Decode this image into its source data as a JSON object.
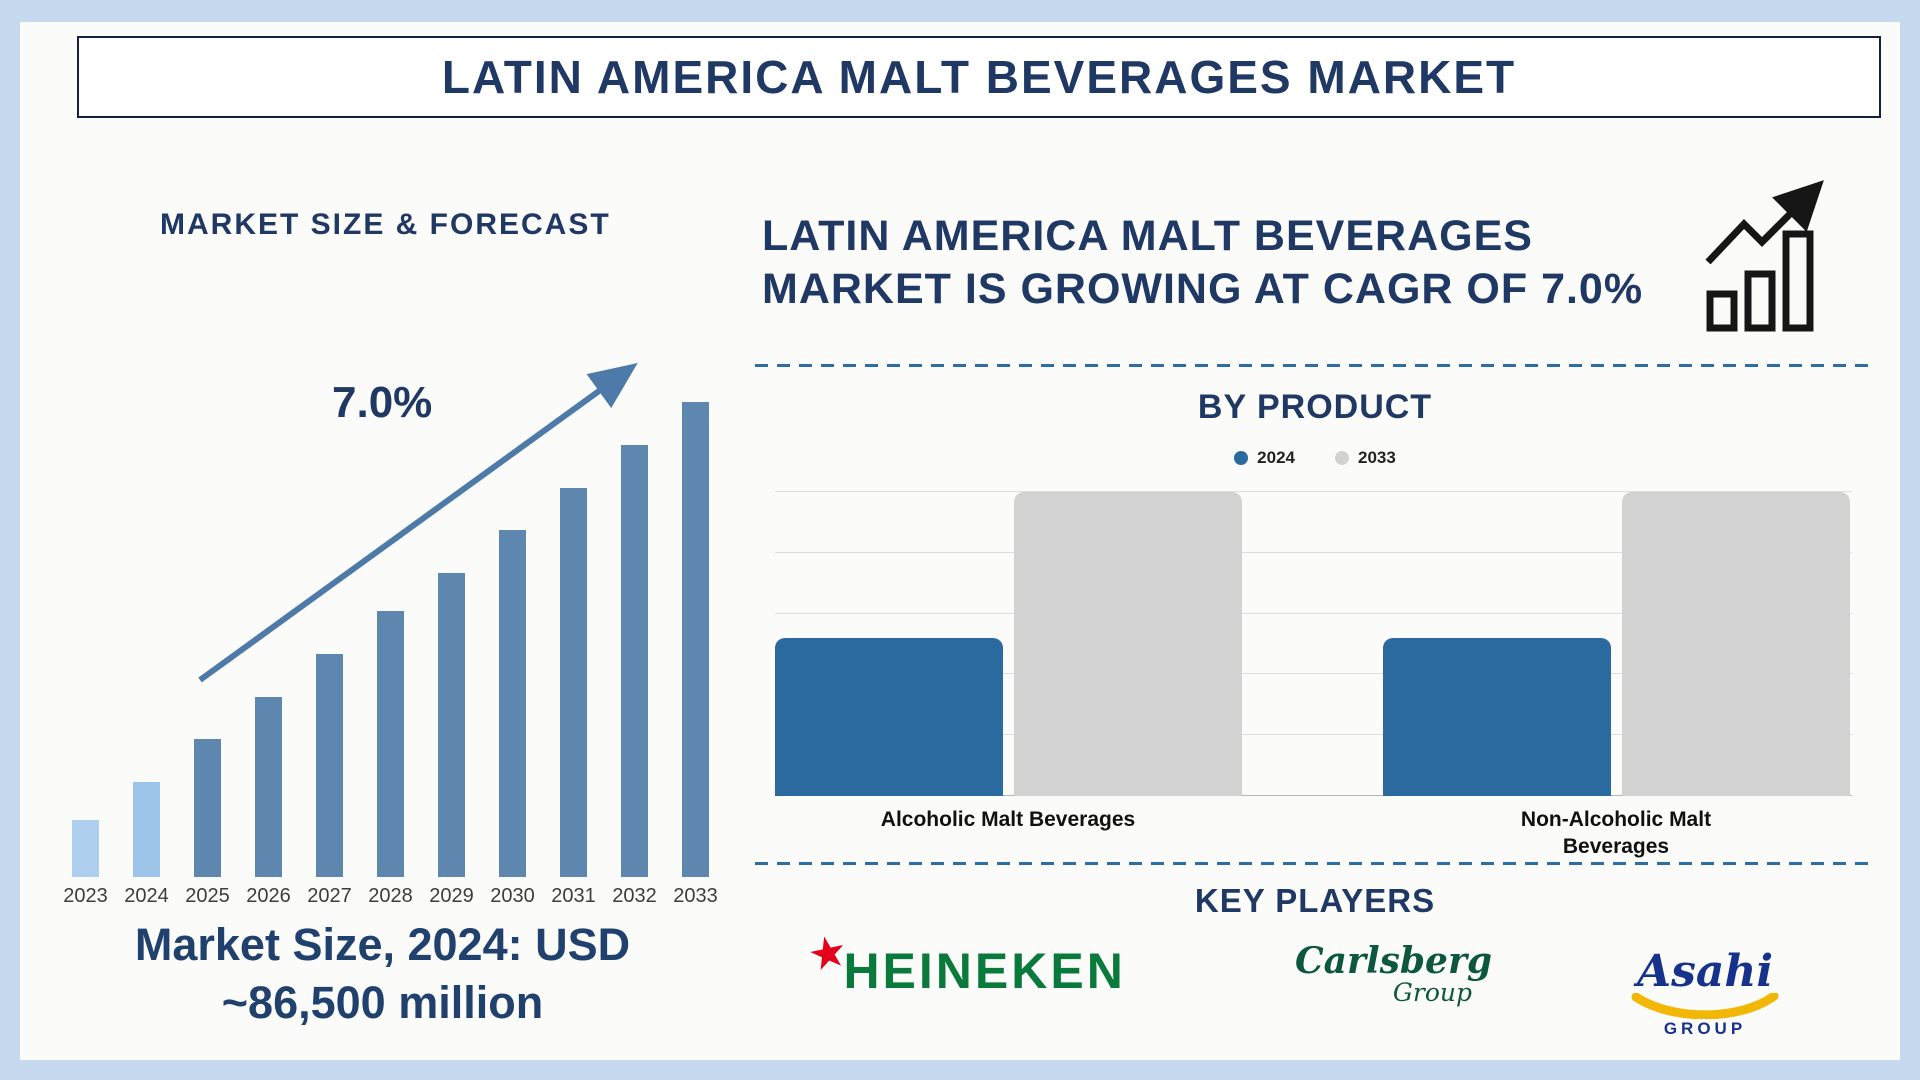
{
  "page": {
    "title": "LATIN AMERICA MALT BEVERAGES MARKET",
    "background_color": "#c7d9ef",
    "panel_color": "#fbfbf9",
    "accent_navy": "#1f3864"
  },
  "forecast": {
    "section_title": "MARKET SIZE & FORECAST",
    "cagr_label": "7.0%",
    "caption_line1": "Market Size, 2024: USD",
    "caption_line2": "~86,500 million",
    "arrow_color": "#4d7aa9"
  },
  "growth_banner": {
    "line1": "LATIN AMERICA MALT BEVERAGES",
    "line2": "MARKET IS GROWING AT CAGR OF 7.0%",
    "icon": "growth-chart-icon"
  },
  "by_product": {
    "title": "BY PRODUCT"
  },
  "key_players": {
    "title": "KEY PLAYERS",
    "logos": [
      {
        "name": "Heineken",
        "text": "HEINEKEN",
        "star_color": "#e2001a",
        "text_color": "#0a7a3c"
      },
      {
        "name": "Carlsberg Group",
        "text": "Carlsberg",
        "subtext": "Group",
        "text_color": "#0d5740"
      },
      {
        "name": "Asahi Group",
        "text": "Asahi",
        "subtext": "GROUP",
        "text_color": "#16328c",
        "swoosh_color": "#f2b705"
      }
    ]
  },
  "chart_data": [
    {
      "type": "bar",
      "title": "MARKET SIZE & FORECAST",
      "categories": [
        "2023",
        "2024",
        "2025",
        "2026",
        "2027",
        "2028",
        "2029",
        "2030",
        "2031",
        "2032",
        "2033"
      ],
      "values": [
        12,
        20,
        29,
        38,
        47,
        56,
        64,
        73,
        82,
        91,
        100
      ],
      "units": "relative bar height, % of tallest bar (no y-axis shown)",
      "annotation": "7.0% CAGR trend arrow",
      "bar_colors": [
        "#aecfee",
        "#9cc3e8",
        "#5e87af",
        "#5e87af",
        "#5e87af",
        "#5e87af",
        "#5e87af",
        "#5e87af",
        "#5e87af",
        "#5e87af",
        "#5e87af"
      ],
      "xlabel": "",
      "ylabel": "",
      "grid": false
    },
    {
      "type": "bar",
      "title": "BY PRODUCT",
      "categories": [
        "Alcoholic Malt Beverages",
        "Non-Alcoholic Malt Beverages"
      ],
      "series": [
        {
          "name": "2024",
          "color": "#2b6a9e",
          "values": [
            52,
            52
          ]
        },
        {
          "name": "2033",
          "color": "#d2d2d2",
          "values": [
            100,
            100
          ]
        }
      ],
      "units": "relative bar height, % of tallest bar (no y-axis shown)",
      "legend_position": "top",
      "grid": true,
      "gridlines": 6
    }
  ]
}
